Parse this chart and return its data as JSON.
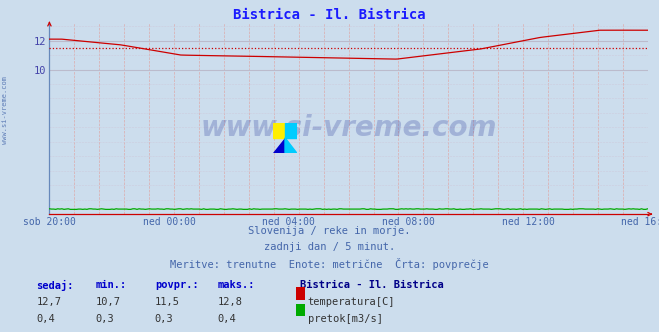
{
  "title": "Bistrica - Il. Bistrica",
  "title_color": "#1a1aff",
  "bg_color": "#ccdded",
  "plot_bg_color": "#ccdded",
  "x_labels": [
    "sob 20:00",
    "ned 00:00",
    "ned 04:00",
    "ned 08:00",
    "ned 12:00",
    "ned 16:00"
  ],
  "x_ticks_norm": [
    0.0,
    0.2,
    0.4,
    0.6,
    0.8,
    1.0
  ],
  "ylim": [
    0.0,
    13.2
  ],
  "ylabel_color": "#4444aa",
  "temp_color": "#cc0000",
  "pretok_color": "#00aa00",
  "avg_line_value": 11.5,
  "watermark_text": "www.si-vreme.com",
  "watermark_color": "#223399",
  "watermark_alpha": 0.25,
  "subtitle_color": "#4466aa",
  "subtitle1": "Slovenija / reke in morje.",
  "subtitle2": "zadnji dan / 5 minut.",
  "subtitle3": "Meritve: trenutne  Enote: metrične  Črta: povprečje",
  "legend_title": "Bistrica - Il. Bistrica",
  "legend_title_color": "#000088",
  "stat_labels": [
    "sedaj:",
    "min.:",
    "povpr.:",
    "maks.:"
  ],
  "stat_color": "#0000cc",
  "temp_stats": [
    "12,7",
    "10,7",
    "11,5",
    "12,8"
  ],
  "pretok_stats": [
    "0,4",
    "0,3",
    "0,3",
    "0,4"
  ],
  "temp_label": "temperatura[C]",
  "pretok_label": "pretok[m3/s]",
  "n_points": 288,
  "temp_min": 10.7,
  "temp_max": 12.8,
  "pretok_val": 0.35,
  "pretok_min": 0.3,
  "pretok_max": 0.4,
  "vgrid_color": "#ddaaaa",
  "hgrid_color": "#bbbbcc",
  "spine_color": "#6688bb",
  "arrow_color": "#cc0000",
  "left_watermark": "www.si-vreme.com"
}
